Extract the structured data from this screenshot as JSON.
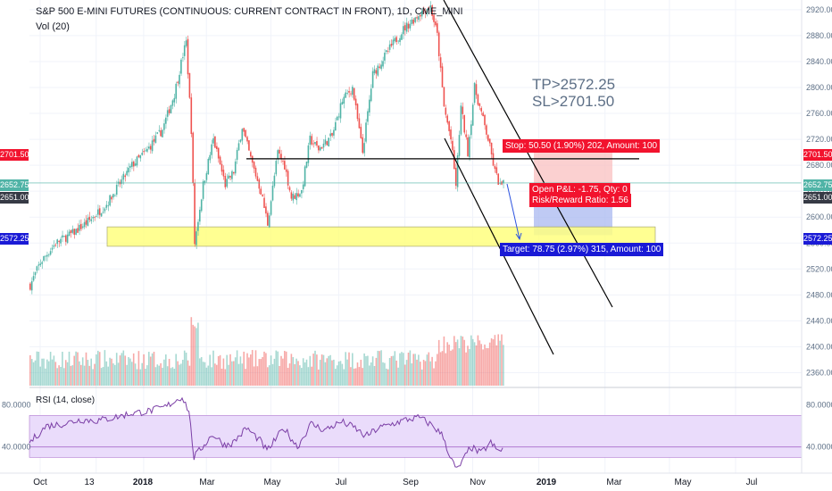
{
  "header": {
    "title": "S&P 500 E-MINI FUTURES (CONTINUOUS: CURRENT CONTRACT IN FRONT), 1D, CME_MINI",
    "volume_label": "Vol (20)",
    "rsi_label": "RSI (14, close)"
  },
  "annotations": {
    "tp": "TP>2572.25",
    "sl": "SL>2701.50",
    "stop_label": "Stop: 50.50 (1.90%) 202, Amount: 100",
    "pnl_label": "Open P&L: -1.75, Qty: 0",
    "rr_label": "Risk/Reward Ratio: 1.56",
    "target_label": "Target: 78.75 (2.97%) 315, Amount: 100"
  },
  "price_tags": {
    "stop": "2701.50",
    "current": "2652.75",
    "entry": "2651.00",
    "target": "2572.25"
  },
  "colors": {
    "up": "#4fb3a6",
    "down": "#ef5350",
    "stop_zone": "#f9c0c0",
    "target_zone": "#aab8f0",
    "support_box": "#ffff80",
    "rsi_band": "#eadcfb",
    "rsi_line": "#7b3fa6",
    "label_red": "#f2132e",
    "label_blue": "#1a1ad6",
    "tag_dark": "#363a45",
    "text_muted": "#5d6f86"
  },
  "chart_data": [
    {
      "type": "candlestick",
      "x_tick_labels": [
        "Oct",
        "13",
        "2018",
        "Mar",
        "May",
        "Jul",
        "Sep",
        "Nov",
        "2019",
        "Mar",
        "May",
        "Jul"
      ],
      "y_ticks": [
        2360,
        2400,
        2440,
        2480,
        2520,
        2560,
        2600,
        2640,
        2680,
        2720,
        2760,
        2800,
        2840,
        2880,
        2920
      ],
      "y_tick_labels": [
        "2360.00",
        "2400.00",
        "2440.00",
        "2480.00",
        "2520.00",
        "2560.00",
        "2600.00",
        "2640.00",
        "2680.00",
        "2720.00",
        "2760.00",
        "2800.00",
        "2840.00",
        "2880.00",
        "2920.00"
      ],
      "ylim": [
        2340,
        2935
      ],
      "path": [
        [
          0,
          2495
        ],
        [
          6,
          2530
        ],
        [
          15,
          2560
        ],
        [
          25,
          2575
        ],
        [
          35,
          2595
        ],
        [
          45,
          2620
        ],
        [
          55,
          2660
        ],
        [
          60,
          2680
        ],
        [
          68,
          2700
        ],
        [
          78,
          2735
        ],
        [
          85,
          2790
        ],
        [
          90,
          2850
        ],
        [
          92,
          2870
        ],
        [
          95,
          2735
        ],
        [
          97,
          2560
        ],
        [
          102,
          2650
        ],
        [
          108,
          2720
        ],
        [
          115,
          2650
        ],
        [
          120,
          2670
        ],
        [
          125,
          2740
        ],
        [
          130,
          2690
        ],
        [
          136,
          2640
        ],
        [
          140,
          2590
        ],
        [
          146,
          2700
        ],
        [
          150,
          2680
        ],
        [
          154,
          2630
        ],
        [
          160,
          2640
        ],
        [
          165,
          2720
        ],
        [
          170,
          2705
        ],
        [
          178,
          2725
        ],
        [
          184,
          2780
        ],
        [
          190,
          2800
        ],
        [
          196,
          2700
        ],
        [
          202,
          2820
        ],
        [
          212,
          2860
        ],
        [
          220,
          2890
        ],
        [
          228,
          2910
        ],
        [
          232,
          2920
        ],
        [
          236,
          2925
        ],
        [
          240,
          2880
        ],
        [
          244,
          2770
        ],
        [
          248,
          2720
        ],
        [
          251,
          2650
        ],
        [
          254,
          2770
        ],
        [
          258,
          2700
        ],
        [
          262,
          2800
        ],
        [
          266,
          2760
        ],
        [
          270,
          2720
        ],
        [
          274,
          2670
        ],
        [
          277,
          2648
        ],
        [
          279,
          2650
        ]
      ],
      "stop_price": 2701.5,
      "entry_price": 2651.0,
      "target_price": 2572.25,
      "support_zone": [
        2555,
        2585
      ],
      "neckline_price": 2690,
      "volume": {
        "label": "Vol (20)"
      }
    },
    {
      "type": "line",
      "name": "RSI (14, close)",
      "y_ticks": [
        40,
        80
      ],
      "y_tick_labels": [
        "40.0000",
        "80.0000"
      ],
      "band": [
        30,
        70
      ],
      "ylim": [
        15,
        95
      ],
      "path": [
        [
          0,
          44
        ],
        [
          10,
          60
        ],
        [
          20,
          62
        ],
        [
          30,
          66
        ],
        [
          40,
          65
        ],
        [
          50,
          68
        ],
        [
          60,
          72
        ],
        [
          70,
          74
        ],
        [
          80,
          78
        ],
        [
          88,
          86
        ],
        [
          90,
          88
        ],
        [
          94,
          74
        ],
        [
          97,
          30
        ],
        [
          102,
          40
        ],
        [
          108,
          52
        ],
        [
          115,
          42
        ],
        [
          120,
          44
        ],
        [
          128,
          58
        ],
        [
          136,
          46
        ],
        [
          140,
          36
        ],
        [
          150,
          58
        ],
        [
          158,
          40
        ],
        [
          166,
          62
        ],
        [
          174,
          56
        ],
        [
          184,
          64
        ],
        [
          192,
          58
        ],
        [
          198,
          50
        ],
        [
          206,
          58
        ],
        [
          214,
          62
        ],
        [
          222,
          66
        ],
        [
          230,
          68
        ],
        [
          238,
          60
        ],
        [
          244,
          50
        ],
        [
          248,
          30
        ],
        [
          252,
          18
        ],
        [
          256,
          28
        ],
        [
          260,
          40
        ],
        [
          266,
          34
        ],
        [
          272,
          44
        ],
        [
          276,
          36
        ],
        [
          279,
          38
        ]
      ]
    }
  ]
}
